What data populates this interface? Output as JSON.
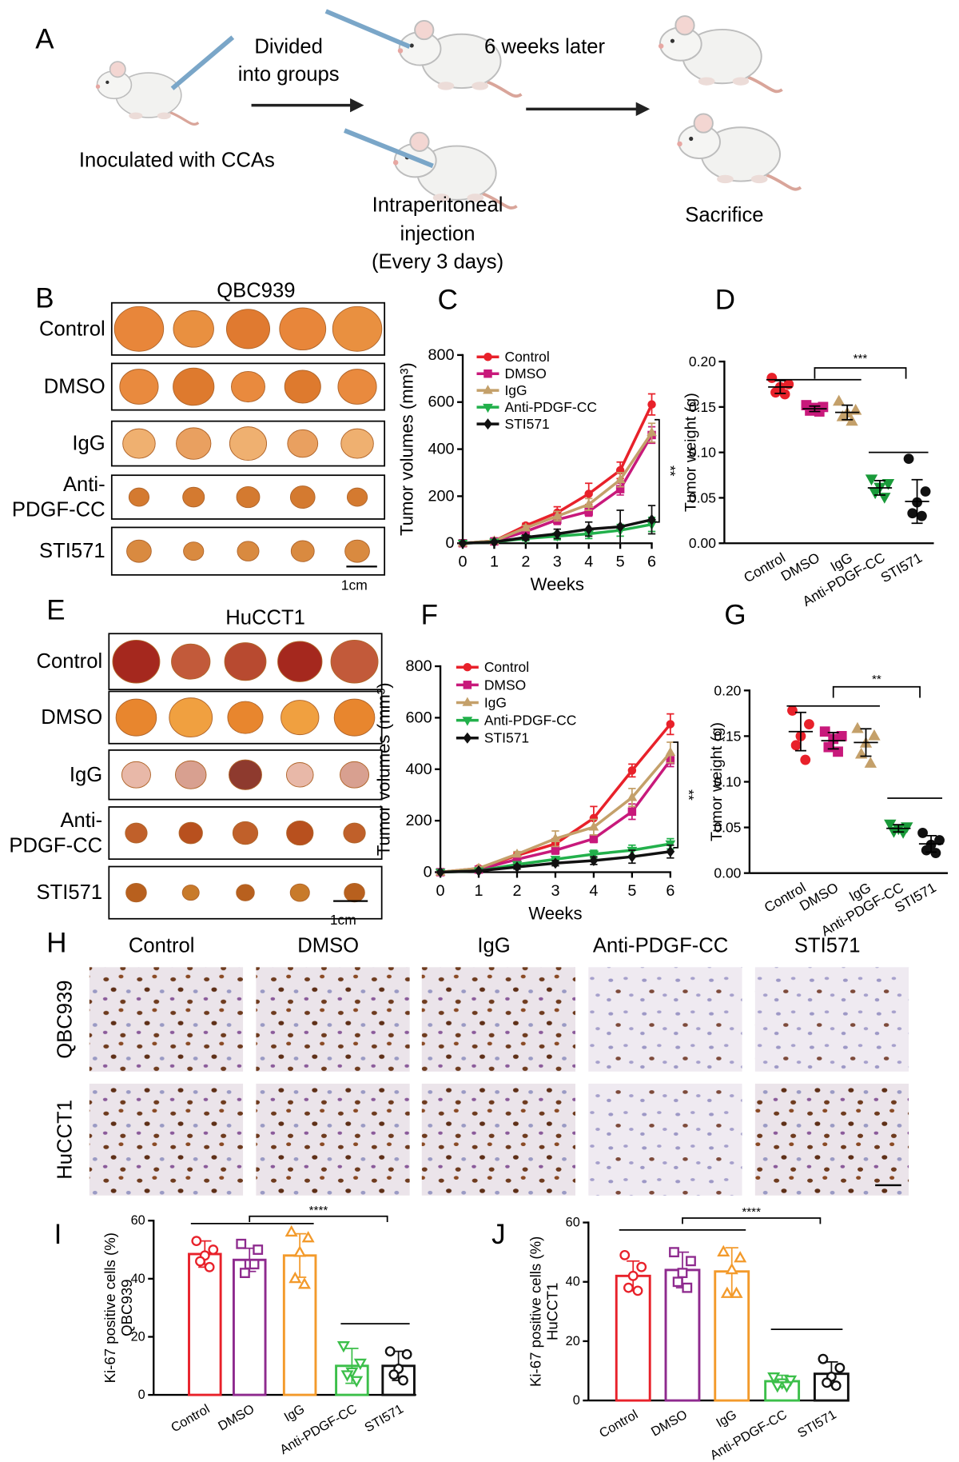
{
  "panel_a": {
    "letter": "A",
    "divide": [
      "Divided",
      "into groups"
    ],
    "wait": "6 weeks later",
    "inoculate": "Inoculated with CCAs",
    "injection": [
      "Intraperitoneal",
      "injection",
      "(Every 3 days)"
    ],
    "sacrifice": "Sacrifice"
  },
  "panel_b": {
    "letter": "B",
    "title": "QBC939",
    "rows": [
      [
        "Control"
      ],
      [
        "DMSO"
      ],
      [
        "IgG"
      ],
      [
        "Anti-",
        "PDGF-CC"
      ],
      [
        "STI571"
      ]
    ],
    "scale": "1cm"
  },
  "panel_e": {
    "letter": "E",
    "title": "HuCCT1",
    "rows": [
      [
        "Control"
      ],
      [
        "DMSO"
      ],
      [
        "IgG"
      ],
      [
        "Anti-",
        "PDGF-CC"
      ],
      [
        "STI571"
      ]
    ],
    "scale": "1cm"
  },
  "panel_h": {
    "letter": "H",
    "columns": [
      "Control",
      "DMSO",
      "IgG",
      "Anti-PDGF-CC",
      "STI571"
    ],
    "rows": [
      "QBC939",
      "HuCCT1"
    ]
  },
  "chart_data": [
    {
      "type": "line",
      "panel": "C",
      "x_label": "Weeks",
      "y_label": "Tumor volumes (mm³)",
      "x": [
        0,
        1,
        2,
        3,
        4,
        5,
        6
      ],
      "xlim": [
        0,
        6
      ],
      "xticks": [
        0,
        1,
        2,
        3,
        4,
        5,
        6
      ],
      "ylim": [
        0,
        800
      ],
      "yticks": [
        0,
        200,
        400,
        600,
        800
      ],
      "legend": "upper left",
      "annotation": "**",
      "series": [
        {
          "name": "Control",
          "color": "#e8212a",
          "marker": "circle",
          "values": [
            0,
            10,
            75,
            130,
            210,
            310,
            590
          ],
          "errors": [
            0,
            5,
            10,
            25,
            45,
            35,
            45
          ]
        },
        {
          "name": "DMSO",
          "color": "#c8197b",
          "marker": "square",
          "values": [
            0,
            8,
            50,
            100,
            135,
            230,
            460
          ],
          "errors": [
            0,
            4,
            10,
            20,
            20,
            25,
            35
          ]
        },
        {
          "name": "IgG",
          "color": "#c4a06a",
          "marker": "triangle-up",
          "values": [
            0,
            10,
            65,
            115,
            165,
            270,
            470
          ],
          "errors": [
            0,
            4,
            10,
            20,
            25,
            30,
            40
          ]
        },
        {
          "name": "Anti-PDGF-CC",
          "color": "#22b04b",
          "marker": "triangle-down",
          "values": [
            0,
            5,
            20,
            30,
            40,
            55,
            80
          ],
          "errors": [
            0,
            3,
            10,
            15,
            20,
            25,
            30
          ]
        },
        {
          "name": "STI571",
          "color": "#111111",
          "marker": "diamond",
          "values": [
            0,
            5,
            25,
            40,
            60,
            70,
            100
          ],
          "errors": [
            0,
            3,
            10,
            20,
            30,
            70,
            60
          ]
        }
      ]
    },
    {
      "type": "dot",
      "panel": "D",
      "y_label": "Tumor weight (g)",
      "categories": [
        "Control",
        "DMSO",
        "IgG",
        "Anti-PDGF-CC",
        "STI571"
      ],
      "ylim": [
        0,
        0.2
      ],
      "yticks": [
        {
          "value": 0,
          "label": "0.00"
        },
        0.05,
        {
          "value": 0.1,
          "label": "0.10"
        },
        0.15,
        {
          "value": 0.2,
          "label": "0.20"
        }
      ],
      "annotation": "***",
      "groups": [
        {
          "color": "#e8212a",
          "marker": "circle",
          "points": [
            0.182,
            0.175,
            0.172,
            0.166,
            0.164
          ],
          "mean": 0.172,
          "sd": 0.007
        },
        {
          "color": "#c8197b",
          "marker": "square",
          "points": [
            0.152,
            0.15,
            0.149,
            0.146,
            0.145
          ],
          "mean": 0.148,
          "sd": 0.003
        },
        {
          "color": "#c4a06a",
          "marker": "triangle-up",
          "points": [
            0.156,
            0.146,
            0.143,
            0.139,
            0.134
          ],
          "mean": 0.144,
          "sd": 0.008
        },
        {
          "color": "#1a9a3a",
          "marker": "triangle-down",
          "points": [
            0.071,
            0.066,
            0.062,
            0.056,
            0.051
          ],
          "mean": 0.061,
          "sd": 0.008
        },
        {
          "color": "#111111",
          "marker": "circle",
          "points": [
            0.093,
            0.057,
            0.045,
            0.033,
            0.03
          ],
          "mean": 0.046,
          "sd": 0.024
        }
      ]
    },
    {
      "type": "line",
      "panel": "F",
      "x_label": "Weeks",
      "y_label": "Tumor volumes (mm³)",
      "x": [
        0,
        1,
        2,
        3,
        4,
        5,
        6
      ],
      "xlim": [
        0,
        6
      ],
      "xticks": [
        0,
        1,
        2,
        3,
        4,
        5,
        6
      ],
      "ylim": [
        0,
        800
      ],
      "yticks": [
        0,
        200,
        400,
        600,
        800
      ],
      "legend": "upper left",
      "annotation": "**",
      "series": [
        {
          "name": "Control",
          "color": "#e8212a",
          "marker": "circle",
          "values": [
            0,
            15,
            65,
            110,
            210,
            395,
            575
          ],
          "errors": [
            0,
            5,
            10,
            20,
            45,
            25,
            40
          ]
        },
        {
          "name": "DMSO",
          "color": "#c8197b",
          "marker": "square",
          "values": [
            0,
            10,
            50,
            85,
            130,
            235,
            435
          ],
          "errors": [
            0,
            4,
            10,
            15,
            15,
            30,
            25
          ]
        },
        {
          "name": "IgG",
          "color": "#c4a06a",
          "marker": "triangle-up",
          "values": [
            0,
            15,
            70,
            130,
            175,
            290,
            465
          ],
          "errors": [
            0,
            5,
            10,
            30,
            30,
            35,
            40
          ]
        },
        {
          "name": "Anti-PDGF-CC",
          "color": "#22b04b",
          "marker": "triangle-down",
          "values": [
            0,
            5,
            30,
            50,
            70,
            85,
            110
          ],
          "errors": [
            0,
            3,
            8,
            10,
            15,
            20,
            20
          ]
        },
        {
          "name": "STI571",
          "color": "#111111",
          "marker": "diamond",
          "values": [
            0,
            5,
            20,
            35,
            45,
            60,
            80
          ],
          "errors": [
            0,
            3,
            8,
            10,
            15,
            25,
            25
          ]
        }
      ]
    },
    {
      "type": "dot",
      "panel": "G",
      "y_label": "Tumor weight (g)",
      "categories": [
        "Control",
        "DMSO",
        "IgG",
        "Anti-PDGF-CC",
        "STI571"
      ],
      "ylim": [
        0,
        0.2
      ],
      "yticks": [
        {
          "value": 0,
          "label": "0.00"
        },
        0.05,
        {
          "value": 0.1,
          "label": "0.10"
        },
        0.15,
        {
          "value": 0.2,
          "label": "0.20"
        }
      ],
      "annotation": "**",
      "groups": [
        {
          "color": "#e8212a",
          "marker": "circle",
          "points": [
            0.178,
            0.163,
            0.15,
            0.14,
            0.124
          ],
          "mean": 0.155,
          "sd": 0.021
        },
        {
          "color": "#c8197b",
          "marker": "square",
          "points": [
            0.155,
            0.15,
            0.147,
            0.138,
            0.133
          ],
          "mean": 0.145,
          "sd": 0.009
        },
        {
          "color": "#c4a06a",
          "marker": "triangle-up",
          "points": [
            0.158,
            0.15,
            0.142,
            0.13,
            0.12
          ],
          "mean": 0.143,
          "sd": 0.015
        },
        {
          "color": "#1a9a3a",
          "marker": "triangle-down",
          "points": [
            0.054,
            0.051,
            0.049,
            0.046,
            0.045
          ],
          "mean": 0.049,
          "sd": 0.004
        },
        {
          "color": "#111111",
          "marker": "circle",
          "points": [
            0.044,
            0.036,
            0.031,
            0.025,
            0.022
          ],
          "mean": 0.032,
          "sd": 0.009
        }
      ]
    },
    {
      "type": "bar",
      "panel": "I",
      "y_label": [
        "Ki-67 positive cells (%)",
        "QBC939"
      ],
      "categories": [
        "Control",
        "DMSO",
        "IgG",
        "Anti-PDGF-CC",
        "STI571"
      ],
      "ylim": [
        0,
        60
      ],
      "yticks": [
        0,
        20,
        40,
        60
      ],
      "annotation": "****",
      "values": [
        48.5,
        46.5,
        48,
        10,
        10
      ],
      "errors": [
        4.5,
        4,
        7.5,
        6,
        5
      ],
      "colors": [
        "#e8212a",
        "#8e2a8e",
        "#f39a2b",
        "#3cbf4a",
        "#111111"
      ],
      "markers": [
        "circle",
        "square",
        "triangle-up",
        "triangle-down",
        "circle"
      ],
      "points": [
        [
          53,
          50,
          48,
          46,
          44
        ],
        [
          52,
          50,
          45,
          42,
          45
        ],
        [
          56,
          54,
          49,
          40,
          38
        ],
        [
          17,
          11,
          8,
          7,
          5
        ],
        [
          15,
          14,
          9,
          7,
          5
        ]
      ]
    },
    {
      "type": "bar",
      "panel": "J",
      "y_label": [
        "Ki-67 positive cells (%)",
        "HuCCT1"
      ],
      "categories": [
        "Control",
        "DMSO",
        "IgG",
        "Anti-PDGF-CC",
        "STI571"
      ],
      "ylim": [
        0,
        60
      ],
      "yticks": [
        0,
        20,
        40,
        60
      ],
      "annotation": "****",
      "values": [
        42,
        44,
        43.5,
        6.5,
        9
      ],
      "errors": [
        5,
        6,
        8,
        2,
        4
      ],
      "colors": [
        "#e8212a",
        "#8e2a8e",
        "#f39a2b",
        "#3cbf4a",
        "#111111"
      ],
      "markers": [
        "circle",
        "square",
        "triangle-up",
        "triangle-down",
        "circle"
      ],
      "points": [
        [
          49,
          45,
          42,
          38,
          37
        ],
        [
          50,
          47,
          43,
          40,
          38
        ],
        [
          50,
          48,
          44,
          36,
          36
        ],
        [
          8,
          7,
          6,
          5,
          5
        ],
        [
          14,
          11,
          8,
          6,
          5
        ]
      ]
    }
  ]
}
